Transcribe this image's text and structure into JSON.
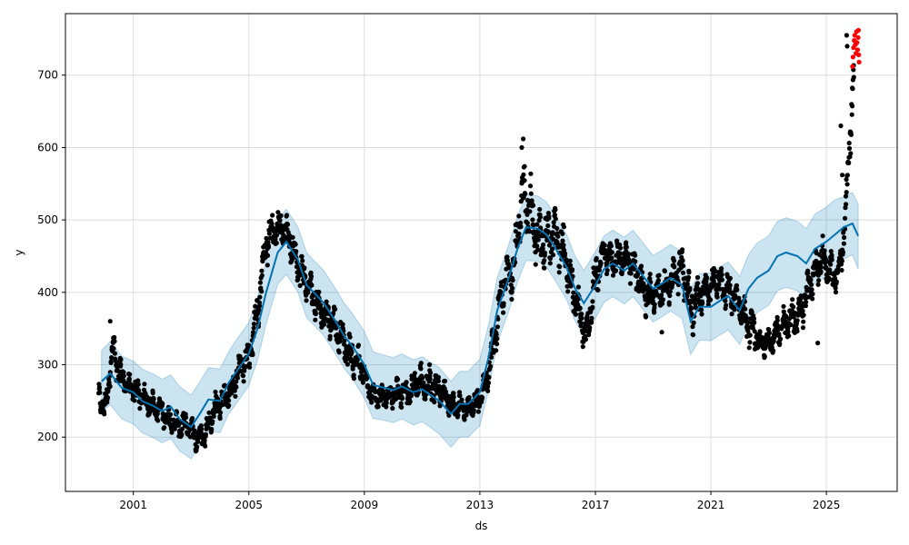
{
  "chart_data": {
    "type": "scatter",
    "xlabel": "ds",
    "ylabel": "y",
    "xlim": [
      1998.65,
      2027.45
    ],
    "ylim": [
      125,
      785
    ],
    "x_ticks": [
      {
        "value": 2001,
        "label": "2001"
      },
      {
        "value": 2005,
        "label": "2005"
      },
      {
        "value": 2009,
        "label": "2009"
      },
      {
        "value": 2013,
        "label": "2013"
      },
      {
        "value": 2017,
        "label": "2017"
      },
      {
        "value": 2021,
        "label": "2021"
      },
      {
        "value": 2025,
        "label": "2025"
      }
    ],
    "y_ticks": [
      {
        "value": 200,
        "label": "200"
      },
      {
        "value": 300,
        "label": "300"
      },
      {
        "value": 400,
        "label": "400"
      },
      {
        "value": 500,
        "label": "500"
      },
      {
        "value": 600,
        "label": "600"
      },
      {
        "value": 700,
        "label": "700"
      }
    ],
    "grid": true,
    "colors": {
      "observed": "#000000",
      "forecast_line": "#0072B2",
      "uncertainty_band": "#0072B2",
      "highlighted": "#ff0000",
      "grid": "#dddddd"
    },
    "series": [
      {
        "role": "forecast",
        "x": [
          1999.9,
          2000.2,
          2000.6,
          2001.0,
          2001.3,
          2001.7,
          2002.0,
          2002.3,
          2002.6,
          2003.0,
          2003.3,
          2003.6,
          2004.0,
          2004.3,
          2004.6,
          2005.0,
          2005.3,
          2005.6,
          2006.0,
          2006.3,
          2006.7,
          2007.0,
          2007.3,
          2007.6,
          2008.0,
          2008.3,
          2008.6,
          2009.0,
          2009.3,
          2009.7,
          2010.0,
          2010.3,
          2010.7,
          2011.0,
          2011.3,
          2011.6,
          2012.0,
          2012.3,
          2012.6,
          2013.0,
          2013.3,
          2013.6,
          2014.0,
          2014.3,
          2014.6,
          2015.0,
          2015.3,
          2015.6,
          2016.0,
          2016.3,
          2016.6,
          2017.0,
          2017.3,
          2017.6,
          2018.0,
          2018.3,
          2018.6,
          2019.0,
          2019.3,
          2019.6,
          2020.0,
          2020.3,
          2020.6,
          2021.0,
          2021.3,
          2021.6,
          2022.0,
          2022.3,
          2022.6,
          2023.0,
          2023.3,
          2023.6,
          2024.0,
          2024.3,
          2024.6,
          2025.0,
          2025.3,
          2025.6,
          2025.9,
          2026.1
        ],
        "yhat": [
          277,
          288,
          268,
          262,
          250,
          243,
          236,
          242,
          225,
          214,
          232,
          252,
          250,
          275,
          292,
          315,
          350,
          400,
          455,
          470,
          445,
          410,
          398,
          385,
          360,
          340,
          325,
          300,
          272,
          268,
          265,
          270,
          262,
          266,
          258,
          250,
          232,
          246,
          246,
          262,
          310,
          375,
          420,
          460,
          490,
          488,
          480,
          462,
          435,
          405,
          385,
          410,
          432,
          440,
          430,
          440,
          425,
          405,
          412,
          420,
          410,
          360,
          380,
          380,
          388,
          395,
          375,
          405,
          420,
          430,
          450,
          455,
          450,
          440,
          460,
          470,
          480,
          490,
          495,
          478
        ],
        "upper": [
          320,
          332,
          312,
          305,
          294,
          287,
          280,
          286,
          270,
          258,
          276,
          296,
          294,
          318,
          336,
          358,
          394,
          444,
          500,
          515,
          490,
          455,
          442,
          430,
          405,
          385,
          370,
          346,
          318,
          313,
          310,
          315,
          307,
          311,
          303,
          296,
          277,
          291,
          291,
          308,
          355,
          420,
          466,
          505,
          535,
          533,
          525,
          507,
          480,
          450,
          430,
          456,
          478,
          486,
          476,
          486,
          471,
          451,
          458,
          466,
          456,
          406,
          426,
          427,
          435,
          442,
          422,
          452,
          468,
          478,
          498,
          503,
          498,
          488,
          508,
          518,
          528,
          532,
          538,
          522
        ],
        "lower": [
          234,
          245,
          225,
          218,
          206,
          199,
          192,
          198,
          181,
          170,
          188,
          208,
          206,
          232,
          248,
          271,
          306,
          356,
          411,
          425,
          400,
          365,
          353,
          340,
          315,
          295,
          280,
          254,
          226,
          223,
          220,
          225,
          217,
          221,
          213,
          204,
          186,
          200,
          200,
          216,
          264,
          330,
          374,
          414,
          444,
          443,
          435,
          417,
          390,
          360,
          340,
          364,
          386,
          394,
          384,
          394,
          379,
          359,
          366,
          374,
          364,
          314,
          334,
          333,
          341,
          348,
          328,
          358,
          372,
          382,
          402,
          407,
          402,
          392,
          412,
          422,
          432,
          446,
          452,
          432
        ]
      },
      {
        "role": "observed",
        "anchors": {
          "x": [
            1999.8,
            2000.0,
            2000.3,
            2000.5,
            2000.8,
            2001.1,
            2001.5,
            2001.9,
            2002.2,
            2002.6,
            2002.9,
            2003.2,
            2003.5,
            2003.8,
            2004.1,
            2004.4,
            2004.7,
            2005.0,
            2005.3,
            2005.6,
            2005.8,
            2006.2,
            2006.6,
            2006.9,
            2007.2,
            2007.5,
            2007.9,
            2008.2,
            2008.5,
            2008.9,
            2009.1,
            2009.4,
            2009.8,
            2010.1,
            2010.5,
            2010.9,
            2011.3,
            2011.7,
            2012.0,
            2012.3,
            2012.6,
            2013.0,
            2013.3,
            2013.6,
            2013.9,
            2014.2,
            2014.5,
            2014.7,
            2015.0,
            2015.3,
            2015.6,
            2015.9,
            2016.1,
            2016.4,
            2016.7,
            2017.0,
            2017.3,
            2017.6,
            2017.9,
            2018.2,
            2018.5,
            2018.8,
            2019.1,
            2019.4,
            2019.7,
            2020.0,
            2020.3,
            2020.6,
            2020.9,
            2021.2,
            2021.5,
            2021.8,
            2022.1,
            2022.4,
            2022.7,
            2023.0,
            2023.3,
            2023.6,
            2023.9,
            2024.2,
            2024.5,
            2024.8,
            2025.1,
            2025.3,
            2025.5,
            2025.7,
            2025.85,
            2025.95
          ],
          "y": [
            260,
            235,
            320,
            290,
            270,
            262,
            248,
            238,
            225,
            215,
            218,
            198,
            205,
            240,
            252,
            262,
            298,
            310,
            375,
            470,
            485,
            490,
            450,
            420,
            398,
            375,
            360,
            338,
            315,
            295,
            270,
            255,
            258,
            262,
            260,
            275,
            272,
            262,
            242,
            245,
            238,
            252,
            290,
            360,
            420,
            440,
            540,
            520,
            470,
            475,
            480,
            455,
            420,
            375,
            340,
            420,
            455,
            445,
            450,
            440,
            420,
            395,
            400,
            405,
            420,
            435,
            380,
            395,
            405,
            420,
            405,
            395,
            370,
            350,
            330,
            332,
            345,
            355,
            365,
            380,
            420,
            450,
            430,
            420,
            440,
            525,
            650,
            705
          ],
          "spread": [
            15,
            15,
            20,
            20,
            15,
            15,
            15,
            15,
            15,
            15,
            15,
            15,
            15,
            15,
            15,
            15,
            20,
            20,
            25,
            25,
            20,
            20,
            20,
            20,
            20,
            20,
            20,
            20,
            20,
            20,
            15,
            15,
            15,
            15,
            15,
            20,
            20,
            15,
            15,
            15,
            15,
            15,
            20,
            25,
            25,
            30,
            40,
            40,
            30,
            30,
            30,
            30,
            25,
            25,
            20,
            25,
            20,
            20,
            20,
            20,
            20,
            25,
            20,
            20,
            20,
            25,
            30,
            25,
            20,
            20,
            20,
            20,
            20,
            25,
            15,
            15,
            20,
            20,
            20,
            20,
            25,
            25,
            20,
            20,
            20,
            25,
            35,
            30
          ]
        },
        "outliers": [
          {
            "x": 2000.2,
            "y": 360
          },
          {
            "x": 2014.5,
            "y": 612
          },
          {
            "x": 2014.45,
            "y": 600
          },
          {
            "x": 2024.7,
            "y": 330
          },
          {
            "x": 2025.55,
            "y": 562
          },
          {
            "x": 2025.5,
            "y": 630
          },
          {
            "x": 2025.7,
            "y": 755
          },
          {
            "x": 2025.72,
            "y": 740
          },
          {
            "x": 2021.1,
            "y": 433
          },
          {
            "x": 2019.3,
            "y": 345
          }
        ]
      },
      {
        "role": "highlighted",
        "x": [
          2025.9,
          2025.92,
          2025.94,
          2025.96,
          2025.98,
          2026.0,
          2026.02,
          2026.04,
          2026.06,
          2026.08,
          2026.1,
          2026.11,
          2026.12,
          2026.13
        ],
        "y": [
          712,
          725,
          738,
          748,
          755,
          742,
          730,
          760,
          745,
          735,
          752,
          762,
          728,
          718
        ]
      }
    ]
  }
}
